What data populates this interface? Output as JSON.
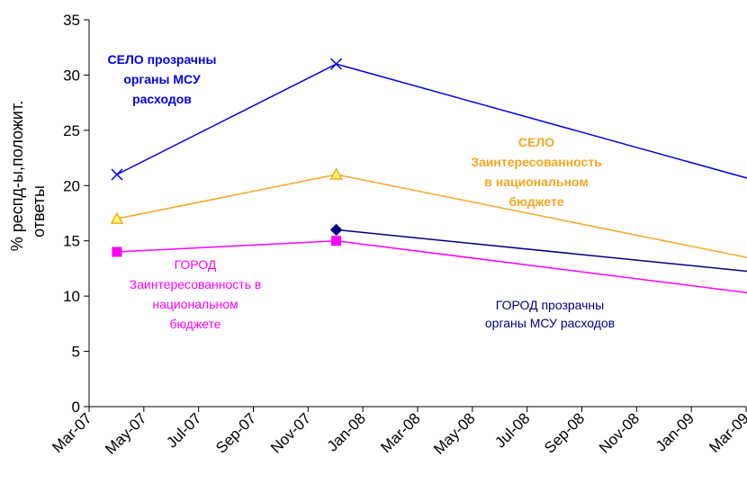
{
  "chart_data": {
    "type": "line",
    "ylabel_lines": [
      "% респд-ы,положит.",
      "ответы"
    ],
    "xlabel": "",
    "ylim": [
      0,
      35
    ],
    "yticks": [
      0,
      5,
      10,
      15,
      20,
      25,
      30,
      35
    ],
    "xticks": [
      "Mar-07",
      "May-07",
      "Jul-07",
      "Sep-07",
      "Nov-07",
      "Jan-08",
      "Mar-08",
      "May-08",
      "Jul-08",
      "Sep-08",
      "Nov-08",
      "Jan-09",
      "Mar-09"
    ],
    "grid": false,
    "series": [
      {
        "label_lines": [
          "СЕЛО прозрачны",
          "органы МСУ",
          "расходов"
        ],
        "color": "#0000ee",
        "marker": "x",
        "bold": true,
        "x": [
          "2007-04",
          "2007-12",
          "2009-04"
        ],
        "y": [
          21,
          31,
          20
        ]
      },
      {
        "label_lines": [
          "СЕЛО",
          "Заинтересованность",
          "в национальном",
          "бюджете"
        ],
        "color": "#f5a623",
        "marker": "triangle",
        "bold": true,
        "x": [
          "2007-04",
          "2007-12",
          "2009-04"
        ],
        "y": [
          17,
          21,
          13
        ]
      },
      {
        "label_lines": [
          "ГОРОД прозрачны",
          "органы МСУ расходов"
        ],
        "color": "#000080",
        "marker": "diamond",
        "bold": false,
        "x": [
          "2007-12",
          "2009-04"
        ],
        "y": [
          16,
          12
        ]
      },
      {
        "label_lines": [
          "ГОРОД",
          "Заинтересованность в",
          "национальном",
          "бюджете"
        ],
        "color": "#ff00ff",
        "marker": "square",
        "bold": false,
        "x": [
          "2007-04",
          "2007-12",
          "2009-04"
        ],
        "y": [
          14,
          15,
          10
        ]
      }
    ]
  }
}
